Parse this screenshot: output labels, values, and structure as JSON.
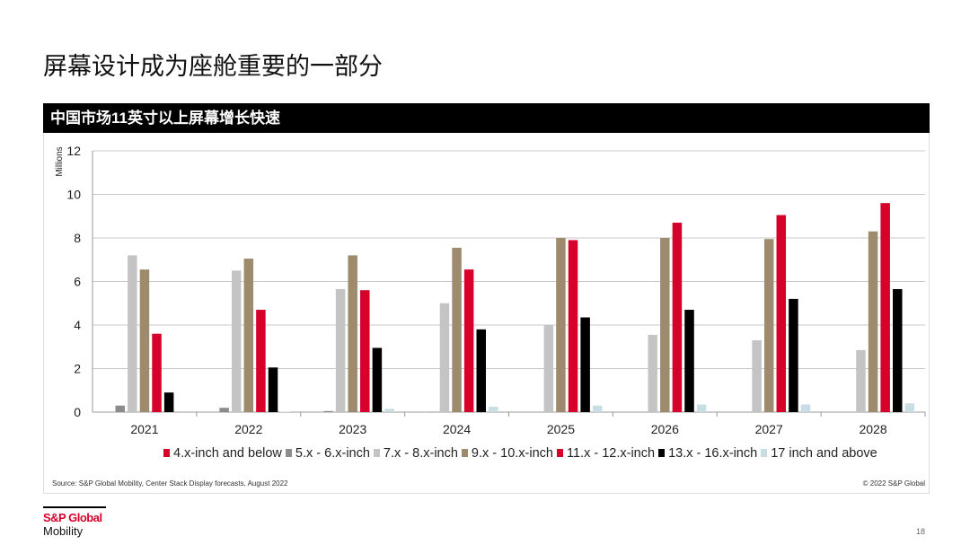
{
  "slide_title": "屏幕设计成为座舱重要的一部分",
  "chart_header": "中国市场11英寸以上屏幕增长快速",
  "source": "Source: S&P Global Mobility, Center Stack Display forecasts, August 2022",
  "copyright": "© 2022 S&P Global",
  "logo": {
    "line1": "S&P Global",
    "line2": "Mobility"
  },
  "page_number": "18",
  "chart_data": {
    "type": "bar",
    "title": "中国市场11英寸以上屏幕增长快速",
    "xlabel": "",
    "ylabel": "Millions",
    "ylim": [
      0,
      12
    ],
    "yticks": [
      "0",
      "2",
      "4",
      "6",
      "8",
      "10",
      "12"
    ],
    "grid": true,
    "legend_position": "bottom",
    "categories": [
      "2021",
      "2022",
      "2023",
      "2024",
      "2025",
      "2026",
      "2027",
      "2028"
    ],
    "series": [
      {
        "name": "4.x-inch and below",
        "color": "#d6002a",
        "values": [
          0,
          0,
          0,
          0,
          0,
          0,
          0,
          0
        ]
      },
      {
        "name": "5.x - 6.x-inch",
        "color": "#8c8c8c",
        "values": [
          0.3,
          0.2,
          0.05,
          0.02,
          0,
          0,
          0,
          0
        ]
      },
      {
        "name": "7.x - 8.x-inch",
        "color": "#c4c4c4",
        "values": [
          7.2,
          6.5,
          5.65,
          5.0,
          4.0,
          3.55,
          3.3,
          2.85
        ]
      },
      {
        "name": "9.x - 10.x-inch",
        "color": "#9e8b6e",
        "values": [
          6.55,
          7.05,
          7.2,
          7.55,
          8.0,
          8.0,
          7.95,
          8.3
        ]
      },
      {
        "name": "11.x - 12.x-inch",
        "color": "#d6002a",
        "values": [
          3.6,
          4.7,
          5.6,
          6.55,
          7.9,
          8.7,
          9.05,
          9.6
        ]
      },
      {
        "name": "13.x - 16.x-inch",
        "color": "#000000",
        "values": [
          0.9,
          2.05,
          2.95,
          3.8,
          4.35,
          4.7,
          5.2,
          5.65
        ]
      },
      {
        "name": "17 inch and above",
        "color": "#c8dde4",
        "values": [
          0,
          0.02,
          0.15,
          0.25,
          0.3,
          0.35,
          0.35,
          0.4
        ]
      }
    ]
  }
}
